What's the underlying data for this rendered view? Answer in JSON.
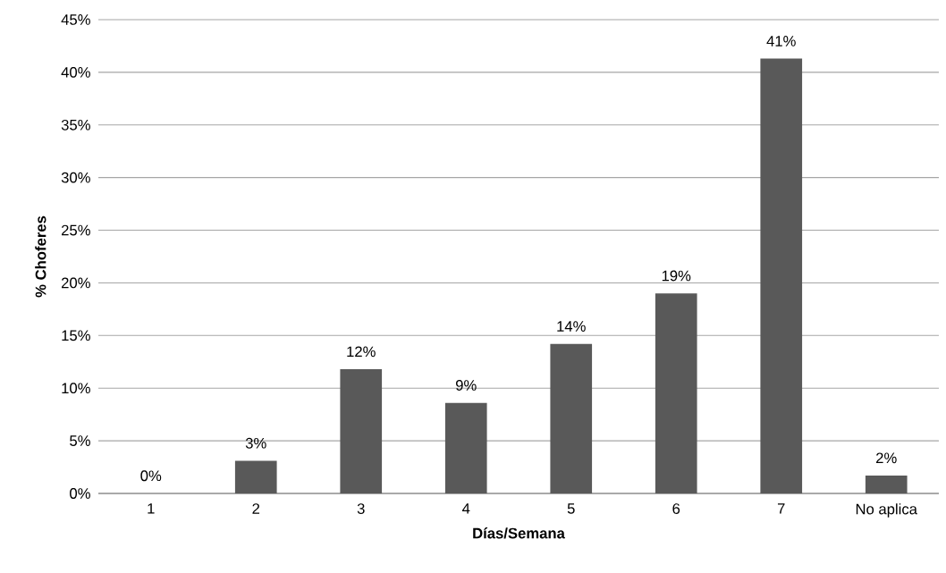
{
  "chart_data": {
    "type": "bar",
    "xlabel": "Días/Semana",
    "ylabel": "% Choferes",
    "categories": [
      "1",
      "2",
      "3",
      "4",
      "5",
      "6",
      "7",
      "No aplica"
    ],
    "values": [
      0,
      3.1,
      11.8,
      8.6,
      14.2,
      19.0,
      41.3,
      1.7
    ],
    "value_labels": [
      "0%",
      "3%",
      "12%",
      "9%",
      "14%",
      "19%",
      "41%",
      "2%"
    ],
    "color": "#595959",
    "ylim": [
      0,
      45
    ],
    "yticks": [
      {
        "value": 0,
        "label": "0%"
      },
      {
        "value": 5,
        "label": "5%"
      },
      {
        "value": 10,
        "label": "10%"
      },
      {
        "value": 15,
        "label": "15%"
      },
      {
        "value": 20,
        "label": "20%"
      },
      {
        "value": 25,
        "label": "25%"
      },
      {
        "value": 30,
        "label": "30%"
      },
      {
        "value": 35,
        "label": "35%"
      },
      {
        "value": 40,
        "label": "40%"
      },
      {
        "value": 45,
        "label": "45%"
      }
    ],
    "grid": "y"
  }
}
